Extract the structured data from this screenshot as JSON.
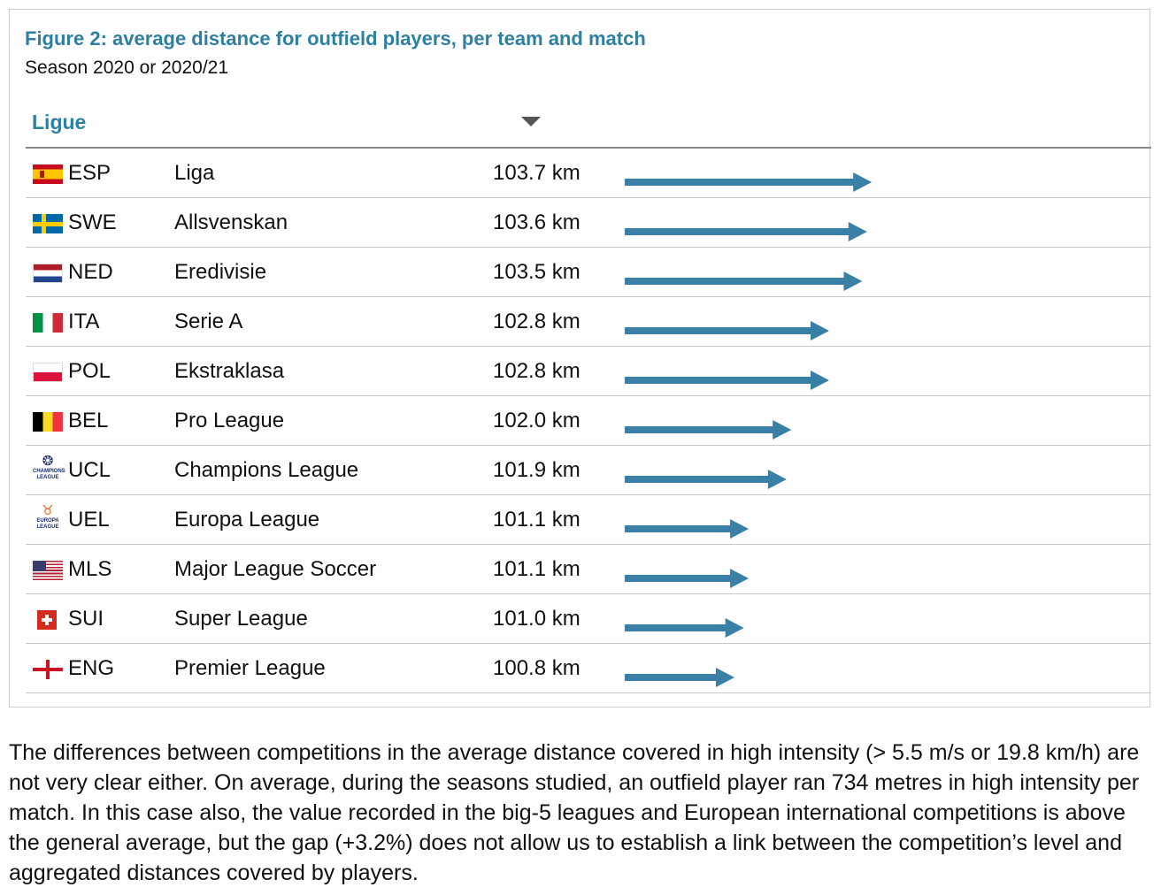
{
  "figure": {
    "title": "Figure 2: average distance for outfield players, per team and match",
    "subtitle": "Season 2020 or 2020/21",
    "column_header": "Ligue"
  },
  "colors": {
    "accent": "#2f7fa2",
    "bar": "#3a7fa6"
  },
  "rows": [
    {
      "code": "ESP",
      "name": "Liga",
      "value_label": "103.7 km",
      "flag": "esp"
    },
    {
      "code": "SWE",
      "name": "Allsvenskan",
      "value_label": "103.6 km",
      "flag": "swe"
    },
    {
      "code": "NED",
      "name": "Eredivisie",
      "value_label": "103.5 km",
      "flag": "ned"
    },
    {
      "code": "ITA",
      "name": "Serie A",
      "value_label": "102.8 km",
      "flag": "ita"
    },
    {
      "code": "POL",
      "name": "Ekstraklasa",
      "value_label": "102.8 km",
      "flag": "pol"
    },
    {
      "code": "BEL",
      "name": "Pro League",
      "value_label": "102.0 km",
      "flag": "bel"
    },
    {
      "code": "UCL",
      "name": "Champions League",
      "value_label": "101.9 km",
      "flag": "ucl",
      "logo_lines": [
        "CHAMPIONS",
        "LEAGUE"
      ]
    },
    {
      "code": "UEL",
      "name": "Europa League",
      "value_label": "101.1 km",
      "flag": "uel",
      "logo_lines": [
        "EUROPA",
        "LEAGUE"
      ]
    },
    {
      "code": "MLS",
      "name": "Major League Soccer",
      "value_label": "101.1 km",
      "flag": "usa"
    },
    {
      "code": "SUI",
      "name": "Super League",
      "value_label": "101.0 km",
      "flag": "sui"
    },
    {
      "code": "ENG",
      "name": "Premier League",
      "value_label": "100.8 km",
      "flag": "eng"
    }
  ],
  "chart_data": {
    "type": "bar",
    "title": "Figure 2: average distance for outfield players, per team and match",
    "subtitle": "Season 2020 or 2020/21",
    "categories": [
      "Liga",
      "Allsvenskan",
      "Eredivisie",
      "Serie A",
      "Ekstraklasa",
      "Pro League",
      "Champions League",
      "Europa League",
      "Major League Soccer",
      "Super League",
      "Premier League"
    ],
    "values": [
      103.7,
      103.6,
      103.5,
      102.8,
      102.8,
      102.0,
      101.9,
      101.1,
      101.1,
      101.0,
      100.8
    ],
    "unit": "km",
    "sorted": "descending"
  },
  "body_text": "The differences between competitions in the average distance covered in high intensity (> 5.5 m/s or 19.8 km/h) are not very clear either. On average, during the seasons studied, an outfield player ran 734 metres in high intensity per match. In this case also, the value recorded in the big-5 leagues and European international competitions is above the general average, but the gap (+3.2%) does not allow us to establish a link between the competition’s level and aggregated distances covered by players."
}
